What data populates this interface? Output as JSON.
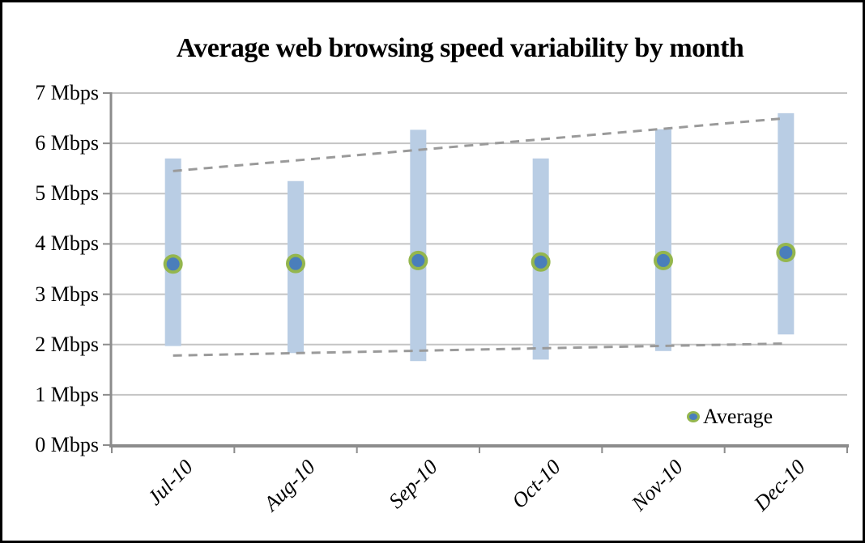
{
  "chart_data": {
    "type": "bar",
    "subtype": "range-bars-with-average-markers",
    "title": "Average web browsing speed variability by month",
    "categories": [
      "Jul-10",
      "Aug-10",
      "Sep-10",
      "Oct-10",
      "Nov-10",
      "Dec-10"
    ],
    "series": [
      {
        "name": "Maximum",
        "values": [
          5.7,
          5.25,
          6.27,
          5.7,
          6.28,
          6.6
        ]
      },
      {
        "name": "Minimum",
        "values": [
          1.97,
          1.83,
          1.67,
          1.7,
          1.87,
          2.2
        ]
      },
      {
        "name": "Average",
        "values": [
          3.6,
          3.61,
          3.67,
          3.64,
          3.67,
          3.83
        ]
      }
    ],
    "trendlines": [
      {
        "of_series": "Maximum",
        "start_value": 5.45,
        "end_value": 6.5,
        "style": "dashed"
      },
      {
        "of_series": "Minimum",
        "start_value": 1.78,
        "end_value": 2.02,
        "style": "dashed"
      }
    ],
    "ylim": [
      0,
      7
    ],
    "yticks": [
      "0 Mbps",
      "1 Mbps",
      "2 Mbps",
      "3 Mbps",
      "4 Mbps",
      "5 Mbps",
      "6 Mbps",
      "7 Mbps"
    ],
    "xlabel": "",
    "ylabel": "",
    "grid": true,
    "legend": {
      "label": "Average",
      "position": "inside-bottom-right"
    },
    "colors": {
      "bar": "#b9cde4",
      "marker_fill": "#4a7ebb",
      "marker_border": "#94b64e",
      "trendline": "#9a9a9a",
      "gridline": "#c4c4c4",
      "axis": "#8c8c8c",
      "text": "#000000",
      "background": "#ffffff",
      "frame_border": "#000000"
    }
  }
}
